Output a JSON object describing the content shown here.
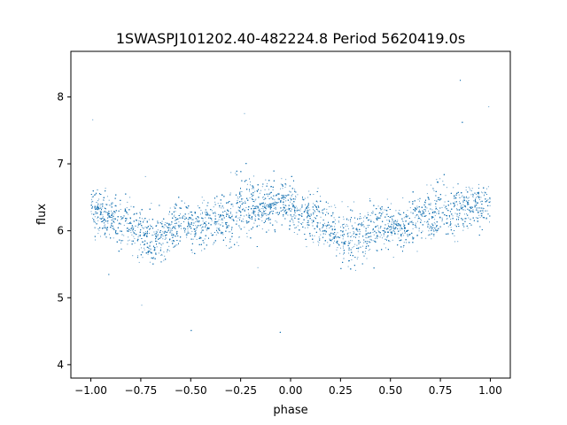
{
  "chart_data": {
    "type": "scatter",
    "title": "1SWASPJ101202.40-482224.8 Period 5620419.0s",
    "xlabel": "phase",
    "ylabel": "flux",
    "xlim": [
      -1.1,
      1.1
    ],
    "ylim": [
      3.8,
      8.68
    ],
    "xticks": [
      -1.0,
      -0.75,
      -0.5,
      -0.25,
      0.0,
      0.25,
      0.5,
      0.75,
      1.0
    ],
    "xtick_labels": [
      "−1.00",
      "−0.75",
      "−0.50",
      "−0.25",
      "0.00",
      "0.25",
      "0.50",
      "0.75",
      "1.00"
    ],
    "yticks": [
      4,
      5,
      6,
      7,
      8
    ],
    "ytick_labels": [
      "4",
      "5",
      "6",
      "7",
      "8"
    ],
    "grid": false,
    "point_color": "#1f77b4",
    "series": [
      {
        "x": [
          -1.0,
          -0.97,
          -0.93,
          -0.9,
          -0.86,
          -0.82,
          -0.78,
          -0.74,
          -0.7,
          -0.66,
          -0.62,
          -0.58,
          -0.54,
          -0.5,
          -0.46,
          -0.42,
          -0.38,
          -0.34,
          -0.3,
          -0.27,
          -0.24,
          -0.2,
          -0.16,
          -0.12,
          -0.08,
          -0.04,
          0.0,
          0.04,
          0.08,
          0.12,
          0.16,
          0.2,
          0.24,
          0.28,
          0.32,
          0.36,
          0.4,
          0.44,
          0.48,
          0.52,
          0.56,
          0.6,
          0.64,
          0.68,
          0.72,
          0.76,
          0.8,
          0.84,
          0.88,
          0.92,
          0.96,
          1.0
        ],
        "y": [
          6.35,
          6.3,
          6.25,
          6.2,
          6.15,
          6.1,
          6.0,
          5.9,
          5.85,
          5.9,
          6.0,
          6.05,
          6.1,
          6.05,
          6.05,
          6.1,
          6.15,
          6.2,
          6.25,
          6.35,
          6.4,
          6.35,
          6.3,
          6.35,
          6.4,
          6.45,
          6.35,
          6.3,
          6.25,
          6.2,
          6.15,
          6.05,
          5.95,
          5.9,
          5.9,
          5.95,
          6.0,
          6.05,
          6.1,
          6.05,
          6.05,
          6.1,
          6.2,
          6.25,
          6.3,
          6.35,
          6.3,
          6.3,
          6.35,
          6.4,
          6.35,
          6.35
        ],
        "spread": [
          0.45,
          0.5,
          0.5,
          0.5,
          0.55,
          0.55,
          0.6,
          0.65,
          0.65,
          0.6,
          0.55,
          0.5,
          0.5,
          0.5,
          0.5,
          0.5,
          0.55,
          0.6,
          0.7,
          0.75,
          0.75,
          0.7,
          0.6,
          0.55,
          0.55,
          0.5,
          0.45,
          0.5,
          0.5,
          0.5,
          0.55,
          0.6,
          0.6,
          0.65,
          0.65,
          0.6,
          0.55,
          0.5,
          0.5,
          0.5,
          0.5,
          0.5,
          0.55,
          0.65,
          0.7,
          0.75,
          0.7,
          0.6,
          0.6,
          0.55,
          0.5,
          0.45
        ]
      }
    ]
  }
}
